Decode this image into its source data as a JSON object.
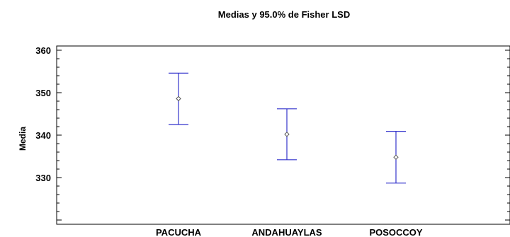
{
  "chart_data": {
    "type": "error-bar",
    "title": "Medias y 95.0% de Fisher LSD",
    "xlabel": "",
    "ylabel": "Media",
    "categories": [
      "PACUCHA",
      "ANDAHUAYLAS",
      "POSOCCOY"
    ],
    "series": [
      {
        "means": [
          348.6,
          340.2,
          334.8
        ],
        "lower": [
          342.5,
          334.2,
          328.7
        ],
        "upper": [
          354.6,
          346.2,
          340.9
        ]
      }
    ],
    "ylim": [
      319,
      361
    ],
    "yticks": [
      330,
      340,
      350,
      360
    ],
    "ytick_labels": [
      "330",
      "340",
      "350",
      "360"
    ],
    "grid": false,
    "colors": {
      "bar": "#3333cc",
      "marker": "#555555",
      "axis": "#000000"
    }
  }
}
